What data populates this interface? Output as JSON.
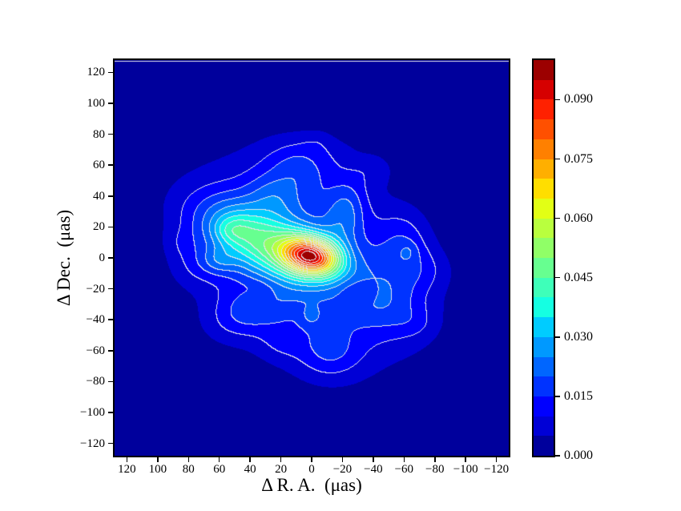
{
  "figure": {
    "background": "#ffffff",
    "spine_color": "#000000",
    "text_color": "#000000"
  },
  "chart_data": {
    "type": "contour",
    "title": "",
    "xlabel": "Δ R. A.  (μas)",
    "ylabel": "Δ Dec.  (μas)",
    "colormap": "jet",
    "levels": {
      "min": 0.0,
      "max": 0.1,
      "step": 0.005,
      "count": 20
    },
    "contour_lines": {
      "color": "#e4e4ea",
      "first_line_level": 0.01
    },
    "x_axis": {
      "min": -128,
      "max": 128,
      "inverted": true,
      "ticks": [
        {
          "value": 120,
          "label": "120"
        },
        {
          "value": 100,
          "label": "100"
        },
        {
          "value": 80,
          "label": "80"
        },
        {
          "value": 60,
          "label": "60"
        },
        {
          "value": 40,
          "label": "40"
        },
        {
          "value": 20,
          "label": "20"
        },
        {
          "value": 0,
          "label": "0"
        },
        {
          "value": -20,
          "label": "−20"
        },
        {
          "value": -40,
          "label": "−40"
        },
        {
          "value": -60,
          "label": "−60"
        },
        {
          "value": -80,
          "label": "−80"
        },
        {
          "value": -100,
          "label": "−100"
        },
        {
          "value": -120,
          "label": "−120"
        }
      ]
    },
    "y_axis": {
      "min": -128,
      "max": 128,
      "inverted": false,
      "ticks": [
        {
          "value": 120,
          "label": "120"
        },
        {
          "value": 100,
          "label": "100"
        },
        {
          "value": 80,
          "label": "80"
        },
        {
          "value": 60,
          "label": "60"
        },
        {
          "value": 40,
          "label": "40"
        },
        {
          "value": 20,
          "label": "20"
        },
        {
          "value": 0,
          "label": "0"
        },
        {
          "value": -20,
          "label": "−20"
        },
        {
          "value": -40,
          "label": "−40"
        },
        {
          "value": -60,
          "label": "−60"
        },
        {
          "value": -80,
          "label": "−80"
        },
        {
          "value": -100,
          "label": "−100"
        },
        {
          "value": -120,
          "label": "−120"
        }
      ]
    },
    "colorbar": {
      "ticks": [
        {
          "value": 0.0,
          "label": "0.000"
        },
        {
          "value": 0.015,
          "label": "0.015"
        },
        {
          "value": 0.03,
          "label": "0.030"
        },
        {
          "value": 0.045,
          "label": "0.045"
        },
        {
          "value": 0.06,
          "label": "0.060"
        },
        {
          "value": 0.075,
          "label": "0.075"
        },
        {
          "value": 0.09,
          "label": "0.090"
        }
      ]
    },
    "peak": {
      "x": 0,
      "y": 1,
      "value": 0.098
    },
    "density_components": [
      {
        "a": 0.066,
        "x": 0,
        "y": 1,
        "sx": 13,
        "sy": 8.5,
        "rot": 12
      },
      {
        "a": 0.03,
        "x": 35,
        "y": 12,
        "sx": 28,
        "sy": 14,
        "rot": 25
      },
      {
        "a": 0.02,
        "x": 5,
        "y": -2,
        "sx": 52,
        "sy": 38,
        "rot": 35
      },
      {
        "a": 0.011,
        "x": 8,
        "y": 58,
        "sx": 16,
        "sy": 13,
        "rot": 0
      },
      {
        "a": 0.01,
        "x": -48,
        "y": -28,
        "sx": 20,
        "sy": 15,
        "rot": 30
      },
      {
        "a": 0.009,
        "x": -60,
        "y": 8,
        "sx": 12,
        "sy": 16,
        "rot": 0
      },
      {
        "a": 0.009,
        "x": -12,
        "y": -62,
        "sx": 15,
        "sy": 12,
        "rot": 0
      },
      {
        "a": 0.01,
        "x": 42,
        "y": -35,
        "sx": 18,
        "sy": 11,
        "rot": -20
      },
      {
        "a": 0.008,
        "x": 52,
        "y": 18,
        "sx": 8,
        "sy": 6,
        "rot": 0
      },
      {
        "a": 0.008,
        "x": 60,
        "y": -2,
        "sx": 8,
        "sy": 6,
        "rot": 0
      },
      {
        "a": 0.006,
        "x": 0,
        "y": -38,
        "sx": 5,
        "sy": 5,
        "rot": 0
      },
      {
        "a": 0.004,
        "x": -63,
        "y": 4,
        "sx": 4.5,
        "sy": 4.5,
        "rot": 0
      },
      {
        "a": 0.007,
        "x": 25,
        "y": 40,
        "sx": 12,
        "sy": 9,
        "rot": 20
      },
      {
        "a": 0.012,
        "x": -22,
        "y": 30,
        "sx": 9,
        "sy": 15,
        "rot": 10
      },
      {
        "a": 0.005,
        "x": -40,
        "y": 58,
        "sx": 10,
        "sy": 8,
        "rot": 0
      },
      {
        "a": 0.005,
        "x": 75,
        "y": -5,
        "sx": 12,
        "sy": 10,
        "rot": 0
      },
      {
        "a": 0.005,
        "x": -75,
        "y": -8,
        "sx": 12,
        "sy": 10,
        "rot": 0
      },
      {
        "a": 0.004,
        "x": 20,
        "y": -55,
        "sx": 10,
        "sy": 8,
        "rot": 0
      },
      {
        "a": 0.003,
        "x": -5,
        "y": 75,
        "sx": 8,
        "sy": 6,
        "rot": 0
      },
      {
        "a": 0.003,
        "x": -68,
        "y": -42,
        "sx": 9,
        "sy": 7,
        "rot": 0
      },
      {
        "a": 0.003,
        "x": 85,
        "y": 10,
        "sx": 8,
        "sy": 7,
        "rot": 0
      },
      {
        "a": 0.002,
        "x": -20,
        "y": 68,
        "sx": 7,
        "sy": 6,
        "rot": 0
      },
      {
        "a": -0.006,
        "x": -30,
        "y": -22,
        "sx": 9,
        "sy": 6,
        "rot": 0
      },
      {
        "a": -0.005,
        "x": 33,
        "y": -20,
        "sx": 10,
        "sy": 6,
        "rot": 0
      }
    ]
  }
}
